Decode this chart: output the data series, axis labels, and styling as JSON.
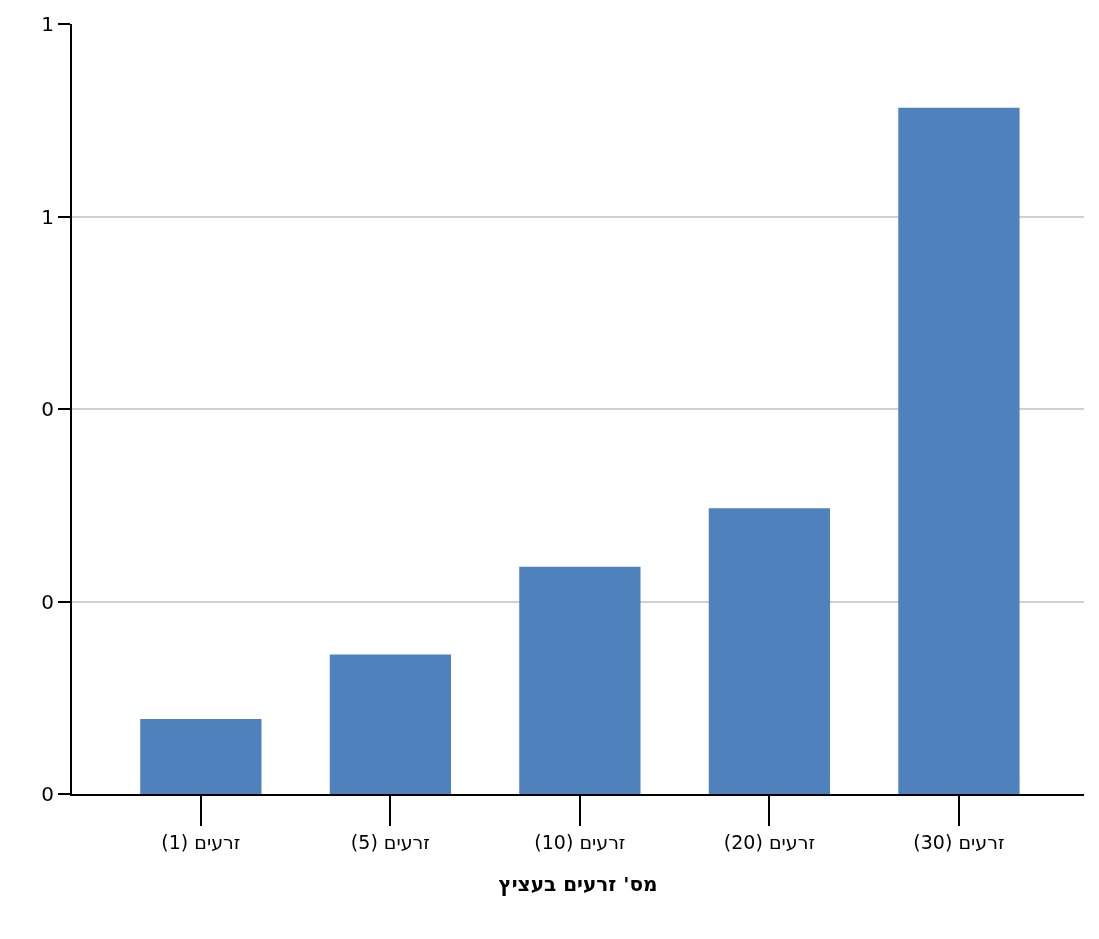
{
  "chart_data": {
    "type": "bar",
    "xlabel": "מס' זרעים בעציץ",
    "categories": [
      "זרעים (1)",
      "זרעים (5)",
      "זרעים (10)",
      "זרעים (20)",
      "זרעים (30)"
    ],
    "values": [
      0.078,
      0.145,
      0.236,
      0.297,
      0.713
    ],
    "color": "#4f81bd",
    "ylim": [
      0,
      0.8
    ],
    "yticks": [
      {
        "value": 0,
        "label": "0"
      },
      {
        "value": 0.2,
        "label": "0"
      },
      {
        "value": 0.4,
        "label": "0"
      },
      {
        "value": 0.6,
        "label": "1"
      },
      {
        "value": 0.8,
        "label": "1"
      }
    ],
    "grid": "y"
  }
}
